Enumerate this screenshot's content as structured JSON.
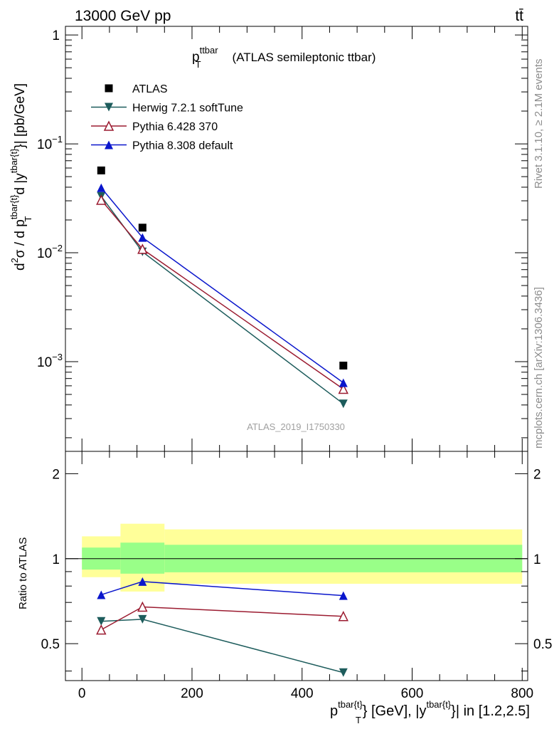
{
  "header": {
    "left": "13000 GeV pp",
    "right": "tt̄"
  },
  "chart_data": [
    {
      "type": "line",
      "title_main": "p",
      "title_sup": "ttbar",
      "title_sub": "T",
      "title_rest": "(ATLAS semileptonic ttbar)",
      "ylabel": {
        "a": "d",
        "a_sup": "2",
        "b": "σ / d p",
        "b_sup": "tbar{t}",
        "b_sub": "T",
        "c": "d |y",
        "c_sup": "tbar{t}",
        "d": "}| [pb/GeV]"
      },
      "yscale": "log",
      "ylim": [
        0.00015,
        1.2
      ],
      "xlim": [
        -30,
        810
      ],
      "ytick_labels": [
        {
          "base": "1",
          "exp": ""
        },
        {
          "base": "10",
          "exp": "−1"
        },
        {
          "base": "10",
          "exp": "−2"
        },
        {
          "base": "10",
          "exp": "−3"
        }
      ],
      "ytick_values": [
        1,
        0.1,
        0.01,
        0.001
      ],
      "legend_position": "top-left",
      "series": [
        {
          "name": "ATLAS",
          "marker": "square",
          "color": "#000000",
          "line": false,
          "x": [
            35,
            110,
            475
          ],
          "y": [
            0.057,
            0.017,
            0.00092
          ]
        },
        {
          "name": "Herwig 7.2.1 softTune",
          "marker": "triangle-down",
          "color": "#1d5c5c",
          "line": true,
          "x": [
            35,
            110,
            475
          ],
          "y": [
            0.033,
            0.0102,
            0.00041
          ]
        },
        {
          "name": "Pythia 6.428 370",
          "marker": "triangle-up-open",
          "color": "#9b1b30",
          "line": true,
          "x": [
            35,
            110,
            475
          ],
          "y": [
            0.0305,
            0.0108,
            0.00056
          ]
        },
        {
          "name": "Pythia 8.308 default",
          "marker": "triangle-up",
          "color": "#0a16cc",
          "line": true,
          "x": [
            35,
            110,
            475
          ],
          "y": [
            0.0395,
            0.0138,
            0.00064
          ]
        }
      ],
      "watermark": "ATLAS_2019_I1750330"
    },
    {
      "type": "line",
      "ylabel": "Ratio to ATLAS",
      "yscale": "log",
      "ylim": [
        0.37,
        2.4
      ],
      "xlim": [
        -30,
        810
      ],
      "ytick_labels": [
        "2",
        "1",
        "0.5"
      ],
      "ytick_values": [
        2,
        1,
        0.5
      ],
      "xtick_labels": [
        "0",
        "200",
        "400",
        "600",
        "800"
      ],
      "xtick_values": [
        0,
        200,
        400,
        600,
        800
      ],
      "xlabel": {
        "a": "p",
        "a_sup": "tbar{t}",
        "a_sub": "T",
        "b": "} [GeV], |y",
        "b_sup": "tbar{t}",
        "c": "}| in [1.2,2.5]"
      },
      "bands": [
        {
          "x0": 0,
          "x1": 70,
          "stat_lo": 0.915,
          "stat_hi": 1.095,
          "tot_lo": 0.86,
          "tot_hi": 1.2
        },
        {
          "x0": 70,
          "x1": 150,
          "stat_lo": 0.885,
          "stat_hi": 1.14,
          "tot_lo": 0.765,
          "tot_hi": 1.33
        },
        {
          "x0": 150,
          "x1": 800,
          "stat_lo": 0.895,
          "stat_hi": 1.12,
          "tot_lo": 0.815,
          "tot_hi": 1.27
        }
      ],
      "band_colors": {
        "stat": "#99ff88",
        "total": "#ffff99"
      },
      "series": [
        {
          "name": "Herwig 7.2.1 softTune",
          "marker": "triangle-down",
          "color": "#1d5c5c",
          "x": [
            35,
            110,
            475
          ],
          "y": [
            0.6,
            0.61,
            0.395
          ]
        },
        {
          "name": "Pythia 6.428 370",
          "marker": "triangle-up-open",
          "color": "#9b1b30",
          "x": [
            35,
            110,
            475
          ],
          "y": [
            0.56,
            0.675,
            0.625
          ]
        },
        {
          "name": "Pythia 8.308 default",
          "marker": "triangle-up",
          "color": "#0a16cc",
          "x": [
            35,
            110,
            475
          ],
          "y": [
            0.745,
            0.83,
            0.74
          ]
        }
      ]
    }
  ],
  "side_text": {
    "top": "Rivet 3.1.10, ≥ 2.1M events",
    "bottom": "mcplots.cern.ch [arXiv:1306.3436]"
  }
}
